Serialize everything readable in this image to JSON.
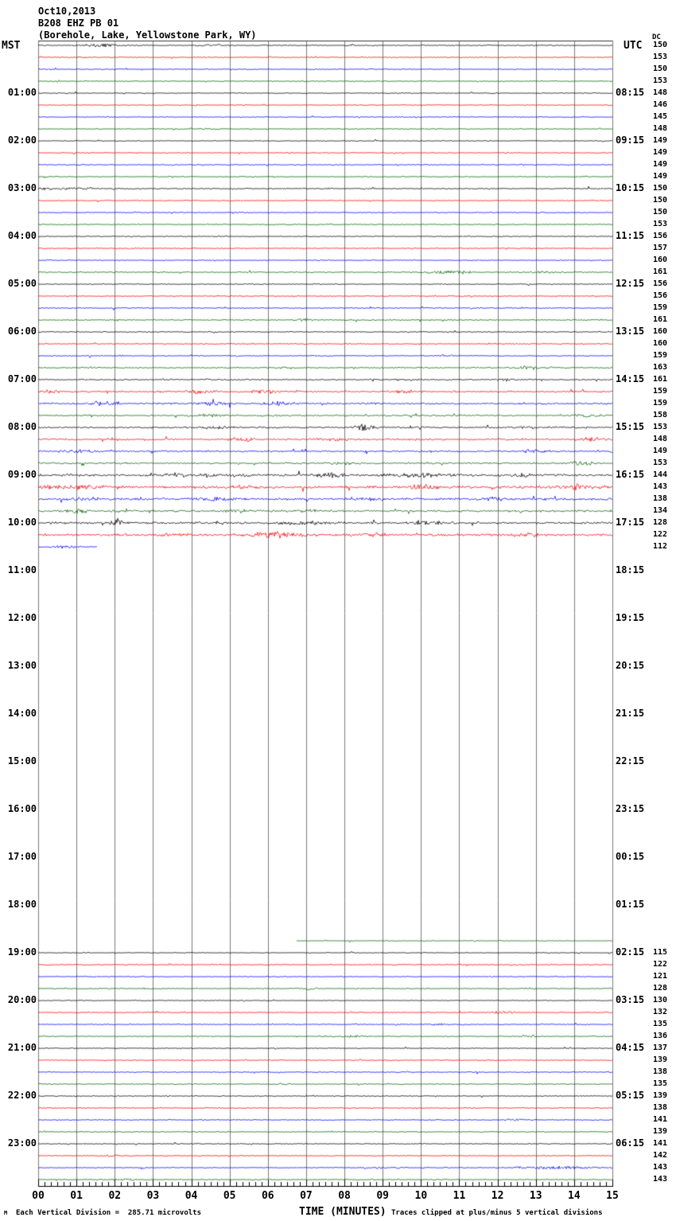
{
  "header": {
    "date": "Oct10,2013",
    "station": "B208 EHZ PB 01",
    "location": "(Borehole, Lake, Yellowstone Park, WY)"
  },
  "axis_headers": {
    "left": "MST",
    "right": "UTC",
    "dc": "DC"
  },
  "footer": {
    "division_note": "Each Vertical Division =  285.71 microvolts",
    "xlabel": "TIME (MINUTES)",
    "clip_note": "Traces clipped at plus/minus 5 vertical divisions",
    "corner_mark": "M"
  },
  "chart_data": {
    "type": "line",
    "subtype": "helicorder",
    "title": "B208 EHZ PB 01 (Borehole, Lake, Yellowstone Park, WY) Oct10,2013",
    "xlabel": "TIME (MINUTES)",
    "minutes_per_line": 15,
    "x_range": [
      0,
      15
    ],
    "x_tick_labels": [
      "00",
      "01",
      "02",
      "03",
      "04",
      "05",
      "06",
      "07",
      "08",
      "09",
      "10",
      "11",
      "12",
      "13",
      "14",
      "15"
    ],
    "grid": true,
    "grid_color": "#7a7a7a",
    "clip_divisions": 5,
    "microvolts_per_division": 285.71,
    "palette": {
      "k": "#000000",
      "r": "#ff0000",
      "b": "#0000ff",
      "g": "#006400"
    },
    "color_cycle": [
      "k",
      "r",
      "b",
      "g"
    ],
    "first_label_row": 4,
    "label_row_step": 4,
    "left_time_labels": [
      "01:00",
      "02:00",
      "03:00",
      "04:00",
      "05:00",
      "06:00",
      "07:00",
      "08:00",
      "09:00",
      "10:00",
      "11:00",
      "12:00",
      "13:00",
      "14:00",
      "15:00",
      "16:00",
      "17:00",
      "18:00",
      "19:00",
      "20:00",
      "21:00",
      "22:00",
      "23:00"
    ],
    "right_time_labels": [
      "08:15",
      "09:15",
      "10:15",
      "11:15",
      "12:15",
      "13:15",
      "14:15",
      "15:15",
      "16:15",
      "17:15",
      "18:15",
      "19:15",
      "20:15",
      "21:15",
      "22:15",
      "23:15",
      "00:15",
      "01:15",
      "02:15",
      "03:15",
      "04:15",
      "05:15",
      "06:15"
    ],
    "gap": {
      "from_row": 43,
      "to_row": 74,
      "mst_from": "10:45",
      "mst_to": "18:30"
    },
    "rows": [
      {
        "i": 0,
        "t": "00:00",
        "c": "k",
        "dc": "150",
        "a": 0.9,
        "b": [
          [
            1.6,
            0.5,
            2.0
          ],
          [
            4.6,
            0.4,
            1.1
          ]
        ]
      },
      {
        "i": 1,
        "t": "00:15",
        "c": "r",
        "dc": "153",
        "a": 0.8
      },
      {
        "i": 2,
        "t": "00:30",
        "c": "b",
        "dc": "150",
        "a": 0.8
      },
      {
        "i": 3,
        "t": "00:45",
        "c": "g",
        "dc": "153",
        "a": 0.8
      },
      {
        "i": 4,
        "t": "01:00",
        "c": "k",
        "dc": "148",
        "a": 0.7
      },
      {
        "i": 5,
        "t": "01:15",
        "c": "r",
        "dc": "146",
        "a": 0.7
      },
      {
        "i": 6,
        "t": "01:30",
        "c": "b",
        "dc": "145",
        "a": 0.7
      },
      {
        "i": 7,
        "t": "01:45",
        "c": "g",
        "dc": "148",
        "a": 0.8
      },
      {
        "i": 8,
        "t": "02:00",
        "c": "k",
        "dc": "149",
        "a": 0.7
      },
      {
        "i": 9,
        "t": "02:15",
        "c": "r",
        "dc": "149",
        "a": 0.8
      },
      {
        "i": 10,
        "t": "02:30",
        "c": "b",
        "dc": "149",
        "a": 0.8
      },
      {
        "i": 11,
        "t": "02:45",
        "c": "g",
        "dc": "149",
        "a": 0.8
      },
      {
        "i": 12,
        "t": "03:00",
        "c": "k",
        "dc": "150",
        "a": 1.0,
        "b": [
          [
            0.4,
            0.5,
            1.6
          ],
          [
            1.2,
            0.4,
            1.2
          ]
        ]
      },
      {
        "i": 13,
        "t": "03:15",
        "c": "r",
        "dc": "150",
        "a": 0.8
      },
      {
        "i": 14,
        "t": "03:30",
        "c": "b",
        "dc": "150",
        "a": 0.8
      },
      {
        "i": 15,
        "t": "03:45",
        "c": "g",
        "dc": "153",
        "a": 0.9
      },
      {
        "i": 16,
        "t": "04:00",
        "c": "k",
        "dc": "156",
        "a": 0.8
      },
      {
        "i": 17,
        "t": "04:15",
        "c": "r",
        "dc": "157",
        "a": 0.8
      },
      {
        "i": 18,
        "t": "04:30",
        "c": "b",
        "dc": "160",
        "a": 0.8
      },
      {
        "i": 19,
        "t": "04:45",
        "c": "g",
        "dc": "161",
        "a": 1.0,
        "b": [
          [
            10.8,
            0.6,
            2.3
          ],
          [
            13.3,
            0.4,
            1.6
          ]
        ]
      },
      {
        "i": 20,
        "t": "05:00",
        "c": "k",
        "dc": "156",
        "a": 0.8
      },
      {
        "i": 21,
        "t": "05:15",
        "c": "r",
        "dc": "156",
        "a": 0.8
      },
      {
        "i": 22,
        "t": "05:30",
        "c": "b",
        "dc": "159",
        "a": 0.9
      },
      {
        "i": 23,
        "t": "05:45",
        "c": "g",
        "dc": "161",
        "a": 1.0,
        "b": [
          [
            6.9,
            0.3,
            1.4
          ]
        ]
      },
      {
        "i": 24,
        "t": "06:00",
        "c": "k",
        "dc": "160",
        "a": 0.9
      },
      {
        "i": 25,
        "t": "06:15",
        "c": "r",
        "dc": "160",
        "a": 0.9
      },
      {
        "i": 26,
        "t": "06:30",
        "c": "b",
        "dc": "159",
        "a": 0.9
      },
      {
        "i": 27,
        "t": "06:45",
        "c": "g",
        "dc": "163",
        "a": 1.1,
        "b": [
          [
            6.5,
            0.3,
            1.3
          ],
          [
            12.9,
            0.5,
            2.0
          ]
        ]
      },
      {
        "i": 28,
        "t": "07:00",
        "c": "k",
        "dc": "161",
        "a": 1.2,
        "b": [
          [
            12.3,
            0.3,
            1.8
          ]
        ]
      },
      {
        "i": 29,
        "t": "07:15",
        "c": "r",
        "dc": "159",
        "a": 1.4,
        "b": [
          [
            0.3,
            0.3,
            1.8
          ],
          [
            4.2,
            0.4,
            2.3
          ],
          [
            5.9,
            0.4,
            2.6
          ],
          [
            9.6,
            0.5,
            1.8
          ]
        ]
      },
      {
        "i": 30,
        "t": "07:30",
        "c": "b",
        "dc": "159",
        "a": 1.5,
        "b": [
          [
            1.6,
            0.5,
            2.6
          ],
          [
            4.5,
            0.5,
            2.3
          ],
          [
            6.2,
            0.4,
            2.8
          ]
        ]
      },
      {
        "i": 31,
        "t": "07:45",
        "c": "g",
        "dc": "158",
        "a": 1.3,
        "b": [
          [
            4.6,
            0.4,
            1.8
          ],
          [
            14.3,
            0.4,
            2.0
          ]
        ]
      },
      {
        "i": 32,
        "t": "08:00",
        "c": "k",
        "dc": "153",
        "a": 1.5,
        "b": [
          [
            4.6,
            0.4,
            1.8
          ],
          [
            8.5,
            0.25,
            4.5
          ]
        ]
      },
      {
        "i": 33,
        "t": "08:15",
        "c": "r",
        "dc": "148",
        "a": 1.5,
        "b": [
          [
            5.3,
            0.4,
            2.3
          ],
          [
            7.6,
            0.4,
            2.0
          ],
          [
            14.5,
            0.4,
            2.3
          ]
        ]
      },
      {
        "i": 34,
        "t": "08:30",
        "c": "b",
        "dc": "149",
        "a": 1.5,
        "b": [
          [
            1.1,
            0.5,
            2.3
          ],
          [
            13.0,
            0.4,
            1.8
          ]
        ]
      },
      {
        "i": 35,
        "t": "08:45",
        "c": "g",
        "dc": "153",
        "a": 1.4,
        "b": [
          [
            8.0,
            0.5,
            1.6
          ],
          [
            14.2,
            0.4,
            2.3
          ]
        ]
      },
      {
        "i": 36,
        "t": "09:00",
        "c": "k",
        "dc": "144",
        "a": 2.0,
        "b": [
          [
            3.6,
            0.4,
            2.5
          ],
          [
            4.4,
            0.3,
            2.5
          ],
          [
            5.2,
            0.3,
            2.2
          ],
          [
            7.6,
            0.5,
            2.8
          ],
          [
            10.0,
            0.8,
            2.6
          ],
          [
            12.6,
            0.4,
            2.4
          ]
        ]
      },
      {
        "i": 37,
        "t": "09:15",
        "c": "r",
        "dc": "143",
        "a": 2.2,
        "b": [
          [
            0.9,
            0.9,
            2.6
          ],
          [
            5.3,
            0.4,
            2.3
          ],
          [
            10.1,
            0.4,
            3.8
          ],
          [
            13.9,
            0.5,
            2.8
          ]
        ]
      },
      {
        "i": 38,
        "t": "09:30",
        "c": "b",
        "dc": "138",
        "a": 2.0,
        "b": [
          [
            1.3,
            0.5,
            2.3
          ],
          [
            4.6,
            0.6,
            2.3
          ],
          [
            8.7,
            0.4,
            2.0
          ],
          [
            11.9,
            0.4,
            2.8
          ]
        ]
      },
      {
        "i": 39,
        "t": "09:45",
        "c": "g",
        "dc": "134",
        "a": 1.7,
        "b": [
          [
            1.0,
            0.3,
            3.2
          ],
          [
            5.2,
            0.5,
            2.0
          ],
          [
            7.1,
            0.4,
            1.8
          ]
        ]
      },
      {
        "i": 40,
        "t": "10:00",
        "c": "k",
        "dc": "128",
        "a": 1.8,
        "b": [
          [
            2.05,
            0.15,
            7.0
          ],
          [
            7.0,
            0.8,
            2.3
          ],
          [
            10.2,
            0.5,
            2.6
          ]
        ]
      },
      {
        "i": 41,
        "t": "10:15",
        "c": "r",
        "dc": "122",
        "a": 1.9,
        "b": [
          [
            3.5,
            0.5,
            1.8
          ],
          [
            6.2,
            0.9,
            3.2
          ],
          [
            8.7,
            0.4,
            2.3
          ],
          [
            12.7,
            0.5,
            2.0
          ]
        ]
      },
      {
        "i": 42,
        "t": "10:30",
        "c": "b",
        "dc": "112",
        "a": 1.1,
        "s": [
          0,
          1.55
        ],
        "b": [
          [
            0.7,
            0.4,
            1.4
          ]
        ]
      },
      {
        "i": 75,
        "t": "18:45",
        "c": "g",
        "dc": null,
        "a": 0.6,
        "s": [
          6.75,
          15
        ]
      },
      {
        "i": 76,
        "t": "19:00",
        "c": "k",
        "dc": "115",
        "a": 0.7
      },
      {
        "i": 77,
        "t": "19:15",
        "c": "r",
        "dc": "122",
        "a": 0.9
      },
      {
        "i": 78,
        "t": "19:30",
        "c": "b",
        "dc": "121",
        "a": 0.8
      },
      {
        "i": 79,
        "t": "19:45",
        "c": "g",
        "dc": "128",
        "a": 0.8,
        "b": [
          [
            7.0,
            0.4,
            1.3
          ]
        ]
      },
      {
        "i": 80,
        "t": "20:00",
        "c": "k",
        "dc": "130",
        "a": 0.7
      },
      {
        "i": 81,
        "t": "20:15",
        "c": "r",
        "dc": "132",
        "a": 0.9,
        "b": [
          [
            12.1,
            0.4,
            1.8
          ]
        ]
      },
      {
        "i": 82,
        "t": "20:30",
        "c": "b",
        "dc": "135",
        "a": 0.8,
        "b": [
          [
            10.4,
            0.3,
            1.3
          ]
        ]
      },
      {
        "i": 83,
        "t": "20:45",
        "c": "g",
        "dc": "136",
        "a": 0.8,
        "b": [
          [
            8.2,
            0.4,
            1.2
          ],
          [
            12.8,
            0.3,
            1.4
          ]
        ]
      },
      {
        "i": 84,
        "t": "21:00",
        "c": "k",
        "dc": "137",
        "a": 0.7
      },
      {
        "i": 85,
        "t": "21:15",
        "c": "r",
        "dc": "139",
        "a": 0.8
      },
      {
        "i": 86,
        "t": "21:30",
        "c": "b",
        "dc": "138",
        "a": 0.8
      },
      {
        "i": 87,
        "t": "21:45",
        "c": "g",
        "dc": "135",
        "a": 0.8,
        "b": [
          [
            6.4,
            0.3,
            1.3
          ]
        ]
      },
      {
        "i": 88,
        "t": "22:00",
        "c": "k",
        "dc": "139",
        "a": 0.8
      },
      {
        "i": 89,
        "t": "22:15",
        "c": "r",
        "dc": "138",
        "a": 0.8
      },
      {
        "i": 90,
        "t": "22:30",
        "c": "b",
        "dc": "141",
        "a": 0.8,
        "b": [
          [
            12.5,
            0.4,
            1.3
          ]
        ]
      },
      {
        "i": 91,
        "t": "22:45",
        "c": "g",
        "dc": "139",
        "a": 0.8
      },
      {
        "i": 92,
        "t": "23:00",
        "c": "k",
        "dc": "141",
        "a": 0.8
      },
      {
        "i": 93,
        "t": "23:15",
        "c": "r",
        "dc": "142",
        "a": 0.8,
        "b": [
          [
            2.0,
            0.3,
            1.4
          ]
        ]
      },
      {
        "i": 94,
        "t": "23:30",
        "c": "b",
        "dc": "143",
        "a": 0.8,
        "b": [
          [
            9.0,
            0.5,
            1.4
          ],
          [
            13.5,
            1.2,
            1.9
          ]
        ]
      },
      {
        "i": 95,
        "t": "23:45",
        "c": "g",
        "dc": "143",
        "a": 0.8,
        "b": [
          [
            2.2,
            0.3,
            1.4
          ]
        ]
      }
    ]
  }
}
